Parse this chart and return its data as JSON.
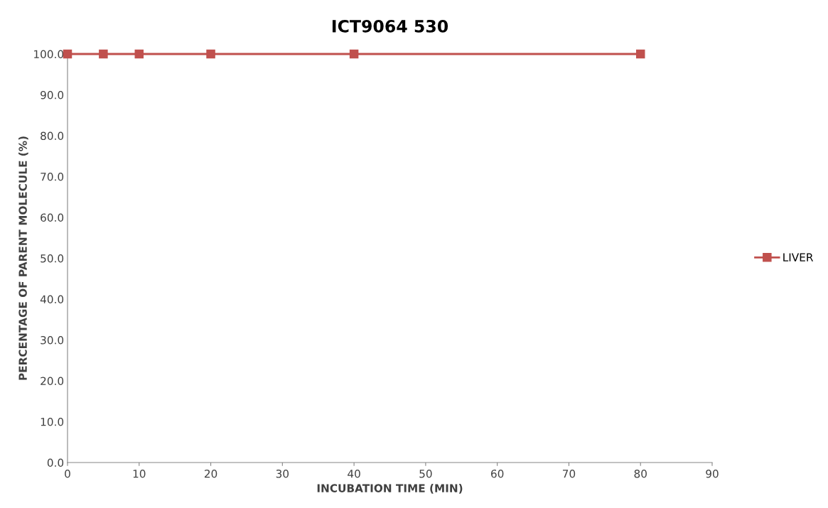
{
  "chart_data": {
    "type": "line",
    "title": "ICT9064 530",
    "xlabel": "INCUBATION TIME (MIN)",
    "ylabel": "PERCENTAGE OF PARENT MOLECULE (%)",
    "x": [
      0,
      5,
      10,
      20,
      40,
      80
    ],
    "series": [
      {
        "name": "LIVER",
        "color": "#c0504d",
        "values": [
          100.0,
          100.0,
          100.0,
          100.0,
          100.0,
          100.0
        ]
      }
    ],
    "xlim": [
      0,
      90
    ],
    "xticks": [
      0,
      10,
      20,
      30,
      40,
      50,
      60,
      70,
      80,
      90
    ],
    "ylim": [
      0,
      100
    ],
    "yticks": [
      {
        "value": 0,
        "label": "0.0"
      },
      {
        "value": 10,
        "label": "10.0"
      },
      {
        "value": 20,
        "label": "20.0"
      },
      {
        "value": 30,
        "label": "30.0"
      },
      {
        "value": 40,
        "label": "40.0"
      },
      {
        "value": 50,
        "label": "50.0"
      },
      {
        "value": 60,
        "label": "60.0"
      },
      {
        "value": 70,
        "label": "70.0"
      },
      {
        "value": 80,
        "label": "80.0"
      },
      {
        "value": 90,
        "label": "90.0"
      },
      {
        "value": 100,
        "label": "100.0"
      }
    ],
    "grid": false,
    "legend": "right",
    "marker": "square",
    "line_style": "solid"
  }
}
